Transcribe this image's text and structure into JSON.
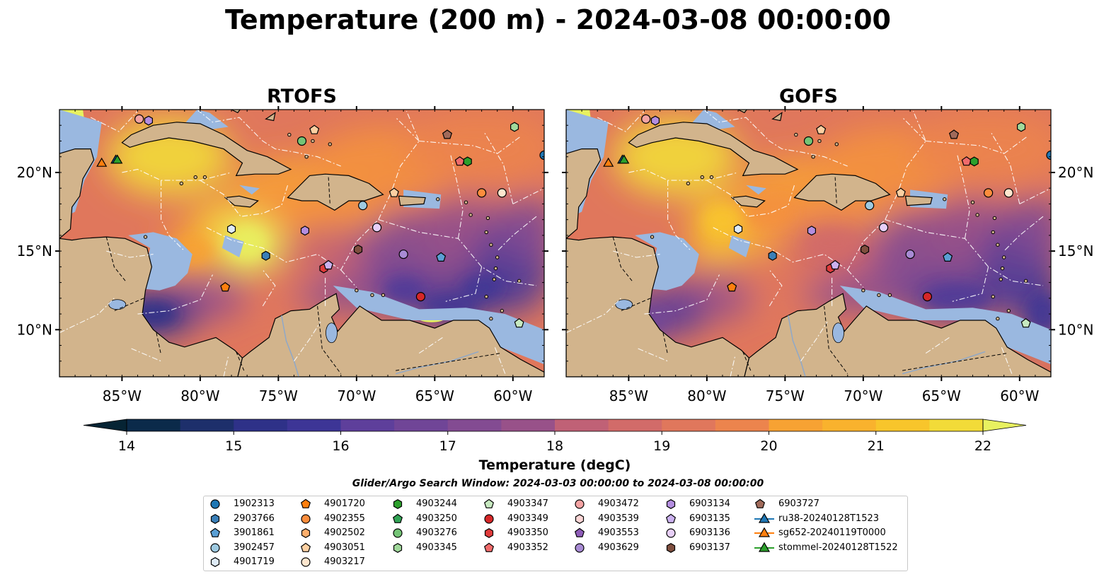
{
  "title": "Temperature (200 m) - 2024-03-08 00:00:00",
  "colors": {
    "land": "#d2b48c",
    "shallow_water": "#9ab8e0",
    "deep_cold": "#062434",
    "eez_lines": "#ffffff",
    "coast": "#000000"
  },
  "panels": [
    {
      "title": "RTOFS",
      "variant": "rtofs"
    },
    {
      "title": "GOFS",
      "variant": "gofs"
    }
  ],
  "map_extent": {
    "lon_min": -89,
    "lon_max": -58,
    "lat_min": 7,
    "lat_max": 24
  },
  "x_ticks": [
    {
      "lon": -85,
      "label": "85°W"
    },
    {
      "lon": -80,
      "label": "80°W"
    },
    {
      "lon": -75,
      "label": "75°W"
    },
    {
      "lon": -70,
      "label": "70°W"
    },
    {
      "lon": -65,
      "label": "65°W"
    },
    {
      "lon": -60,
      "label": "60°W"
    }
  ],
  "y_ticks": [
    {
      "lat": 20,
      "label": "20°N"
    },
    {
      "lat": 15,
      "label": "15°N"
    },
    {
      "lat": 10,
      "label": "10°N"
    }
  ],
  "colorbar": {
    "label": "Temperature (degC)",
    "min": 14,
    "max": 22,
    "step": 0.5,
    "ticks": [
      "14",
      "15",
      "16",
      "17",
      "18",
      "19",
      "20",
      "21",
      "22"
    ],
    "palette": [
      "#062434",
      "#0b2a4a",
      "#1d2f6b",
      "#2e3188",
      "#3d3596",
      "#4d3a9a",
      "#5e3f9b",
      "#704597",
      "#834b92",
      "#985189",
      "#ad5880",
      "#c06176",
      "#d26b69",
      "#e0775c",
      "#ec844d",
      "#f4923f",
      "#f7a233",
      "#f9b22d",
      "#f8c52b",
      "#f2db38",
      "#e8f160"
    ]
  },
  "legend": {
    "subtitle": "Glider/Argo Search Window: 2024-03-03 00:00:00 to 2024-03-08 00:00:00",
    "columns": [
      [
        {
          "label": "1902313",
          "marker": "circle",
          "color": "#1f77b4"
        },
        {
          "label": "2903766",
          "marker": "hexagon",
          "color": "#3a7fb8"
        },
        {
          "label": "3901861",
          "marker": "pentagon",
          "color": "#5a9fd4"
        },
        {
          "label": "3902457",
          "marker": "circle",
          "color": "#9ecae1"
        },
        {
          "label": "4901719",
          "marker": "hexagon",
          "color": "#deebf7"
        }
      ],
      [
        {
          "label": "4901720",
          "marker": "pentagon",
          "color": "#ff7f0e"
        },
        {
          "label": "4902355",
          "marker": "circle",
          "color": "#fd8d3c"
        },
        {
          "label": "4902502",
          "marker": "hexagon",
          "color": "#fdae6b"
        },
        {
          "label": "4903051",
          "marker": "pentagon",
          "color": "#fdd0a2"
        },
        {
          "label": "4903217",
          "marker": "circle",
          "color": "#fee6ce"
        }
      ],
      [
        {
          "label": "4903244",
          "marker": "hexagon",
          "color": "#2ca02c"
        },
        {
          "label": "4903250",
          "marker": "pentagon",
          "color": "#31a354"
        },
        {
          "label": "4903276",
          "marker": "circle",
          "color": "#74c476"
        },
        {
          "label": "4903345",
          "marker": "hexagon",
          "color": "#a1d99b"
        }
      ],
      [
        {
          "label": "4903347",
          "marker": "pentagon",
          "color": "#c7e9c0"
        },
        {
          "label": "4903349",
          "marker": "circle",
          "color": "#d62728"
        },
        {
          "label": "4903350",
          "marker": "hexagon",
          "color": "#e03b3b"
        },
        {
          "label": "4903352",
          "marker": "pentagon",
          "color": "#f06b6b"
        }
      ],
      [
        {
          "label": "4903472",
          "marker": "circle",
          "color": "#f4a3a3"
        },
        {
          "label": "4903539",
          "marker": "hexagon",
          "color": "#fbd5d5"
        },
        {
          "label": "4903553",
          "marker": "pentagon",
          "color": "#8e5cb8"
        },
        {
          "label": "4903629",
          "marker": "circle",
          "color": "#a88bd4"
        }
      ],
      [
        {
          "label": "6903134",
          "marker": "hexagon",
          "color": "#b48ee0"
        },
        {
          "label": "6903135",
          "marker": "pentagon",
          "color": "#cbb1ef"
        },
        {
          "label": "6903136",
          "marker": "circle",
          "color": "#e7cff8"
        },
        {
          "label": "6903137",
          "marker": "hexagon",
          "color": "#7f4f3f"
        }
      ],
      [
        {
          "label": "6903727",
          "marker": "pentagon",
          "color": "#a06a5a"
        },
        {
          "label": "ru38-20240128T1523",
          "marker": "triangle-line",
          "color": "#1f77b4"
        },
        {
          "label": "sg652-20240119T0000",
          "marker": "triangle-line",
          "color": "#ff7f0e"
        },
        {
          "label": "stommel-20240128T1522",
          "marker": "triangle-line",
          "color": "#2ca02c"
        }
      ]
    ]
  },
  "platforms": [
    {
      "lon": -83.9,
      "lat": 23.4,
      "marker": "circle",
      "color": "#f4a3a3"
    },
    {
      "lon": -83.3,
      "lat": 23.3,
      "marker": "hexagon",
      "color": "#b48ee0"
    },
    {
      "lon": -72.7,
      "lat": 22.7,
      "marker": "pentagon",
      "color": "#fdd0a2"
    },
    {
      "lon": -73.5,
      "lat": 22.0,
      "marker": "circle",
      "color": "#74c476"
    },
    {
      "lon": -64.2,
      "lat": 22.4,
      "marker": "pentagon",
      "color": "#a06a5a"
    },
    {
      "lon": -59.9,
      "lat": 22.9,
      "marker": "hexagon",
      "color": "#a1d99b"
    },
    {
      "lon": -63.4,
      "lat": 20.7,
      "marker": "pentagon",
      "color": "#f06b6b"
    },
    {
      "lon": -62.9,
      "lat": 20.7,
      "marker": "hexagon",
      "color": "#2ca02c"
    },
    {
      "lon": -58.0,
      "lat": 21.1,
      "marker": "circle",
      "color": "#1f77b4"
    },
    {
      "lon": -67.6,
      "lat": 18.7,
      "marker": "pentagon",
      "color": "#fdd0a2"
    },
    {
      "lon": -62.0,
      "lat": 18.7,
      "marker": "circle",
      "color": "#fd8d3c"
    },
    {
      "lon": -60.7,
      "lat": 18.7,
      "marker": "circle",
      "color": "#fee6ce"
    },
    {
      "lon": -69.6,
      "lat": 17.9,
      "marker": "circle",
      "color": "#9ecae1"
    },
    {
      "lon": -78.0,
      "lat": 16.4,
      "marker": "hexagon",
      "color": "#deebf7"
    },
    {
      "lon": -73.3,
      "lat": 16.3,
      "marker": "hexagon",
      "color": "#b48ee0"
    },
    {
      "lon": -68.7,
      "lat": 16.5,
      "marker": "circle",
      "color": "#e7cff8"
    },
    {
      "lon": -75.8,
      "lat": 14.7,
      "marker": "hexagon",
      "color": "#3a7fb8"
    },
    {
      "lon": -69.9,
      "lat": 15.1,
      "marker": "hexagon",
      "color": "#7f4f3f"
    },
    {
      "lon": -67.0,
      "lat": 14.8,
      "marker": "circle",
      "color": "#a88bd4"
    },
    {
      "lon": -64.6,
      "lat": 14.6,
      "marker": "pentagon",
      "color": "#5a9fd4"
    },
    {
      "lon": -72.1,
      "lat": 13.9,
      "marker": "hexagon",
      "color": "#e03b3b"
    },
    {
      "lon": -71.8,
      "lat": 14.1,
      "marker": "pentagon",
      "color": "#cbb1ef"
    },
    {
      "lon": -78.4,
      "lat": 12.7,
      "marker": "pentagon",
      "color": "#ff7f0e"
    },
    {
      "lon": -65.9,
      "lat": 12.1,
      "marker": "circle",
      "color": "#d62728"
    },
    {
      "lon": -59.6,
      "lat": 10.4,
      "marker": "pentagon",
      "color": "#c7e9c0"
    },
    {
      "lon": -86.3,
      "lat": 20.6,
      "marker": "triangle",
      "color": "#ff7f0e"
    },
    {
      "lon": -85.4,
      "lat": 20.8,
      "marker": "triangle",
      "color": "#1f77b4"
    },
    {
      "lon": -85.3,
      "lat": 20.8,
      "marker": "triangle",
      "color": "#2ca02c"
    }
  ]
}
